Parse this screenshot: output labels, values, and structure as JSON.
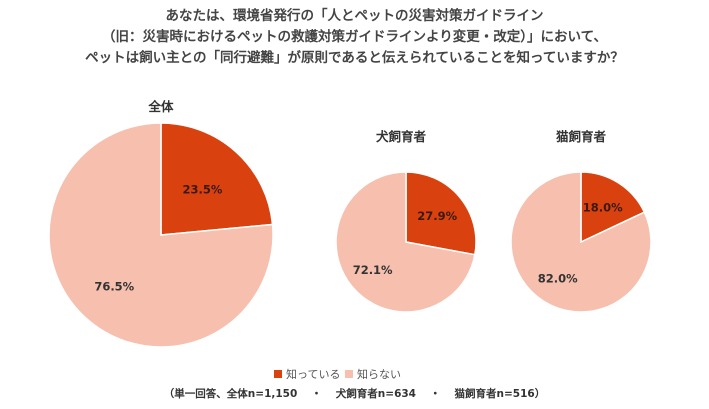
{
  "title": {
    "line1": "あなたは、環境省発行の「人とペットの災害対策ガイドライン",
    "line2": "（旧：災害時におけるペットの救護対策ガイドラインより変更・改定）」において、",
    "line3": "ペットは飼い主との「同行避難」が原則であると伝えられていることを知っていますか？"
  },
  "chart_data": [
    {
      "type": "pie",
      "title": "全体",
      "categories": [
        "知っている",
        "知らない"
      ],
      "values": [
        23.5,
        76.5
      ],
      "labels": [
        "23.5%",
        "76.5%"
      ]
    },
    {
      "type": "pie",
      "title": "犬飼育者",
      "categories": [
        "知っている",
        "知らない"
      ],
      "values": [
        27.9,
        72.1
      ],
      "labels": [
        "27.9%",
        "72.1%"
      ]
    },
    {
      "type": "pie",
      "title": "猫飼育者",
      "categories": [
        "知っている",
        "知らない"
      ],
      "values": [
        18.0,
        82.0
      ],
      "labels": [
        "18.0%",
        "82.0%"
      ]
    }
  ],
  "legend": {
    "placement": "bottom",
    "items": [
      {
        "label": "知っている",
        "color": "#d9420f"
      },
      {
        "label": "知らない",
        "color": "#f6bfae"
      }
    ]
  },
  "footnote": {
    "part1": "（単一回答、全体n=1,150",
    "sep": "・",
    "part2": "犬飼育者n=634",
    "part3": "猫飼育者n=516）"
  },
  "colors": {
    "known": "#d9420f",
    "unknown": "#f6bfae",
    "label_on_dark": "#3a1a10",
    "label_on_light": "#333333"
  }
}
